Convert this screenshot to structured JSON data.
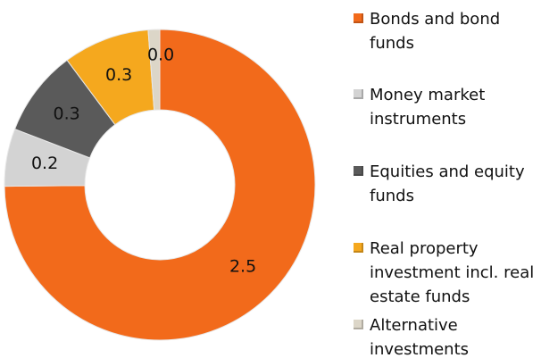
{
  "chart_data": {
    "type": "donut",
    "categories": [
      "Bonds and bond funds",
      "Money market instruments",
      "Equities and equity funds",
      "Real property investment incl. real estate funds",
      "Alternative investments"
    ],
    "values": [
      2.5,
      0.2,
      0.3,
      0.3,
      0.04
    ],
    "value_labels": [
      "2.5",
      "0.2",
      "0.3",
      "0.3",
      "0.0"
    ],
    "colors": [
      "#f26a1b",
      "#d3d3d3",
      "#5a5a5a",
      "#f5a81e",
      "#dcd6c8"
    ],
    "legend": "right"
  }
}
